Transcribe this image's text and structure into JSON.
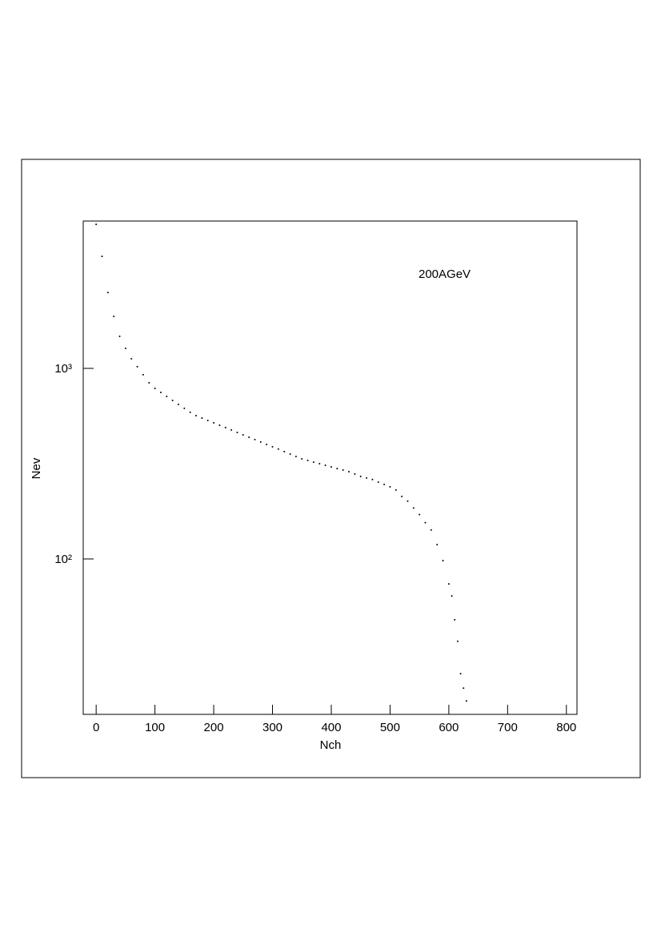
{
  "chart_data": {
    "type": "scatter",
    "annotation": "200AGeV",
    "x_label": "Nch",
    "y_label": "Nev",
    "log_y": true,
    "color": "#000000",
    "xlim": [
      -22,
      818
    ],
    "ylim": [
      15.3,
      5930
    ],
    "xticks": [
      0,
      100,
      200,
      300,
      400,
      500,
      600,
      700,
      800
    ],
    "yticks": [
      {
        "value": 100,
        "label": "10²"
      },
      {
        "value": 1000,
        "label": "10³"
      }
    ],
    "x": [
      0,
      10,
      20,
      30,
      40,
      50,
      60,
      70,
      80,
      90,
      100,
      110,
      120,
      130,
      140,
      150,
      160,
      170,
      180,
      190,
      200,
      210,
      220,
      230,
      240,
      250,
      260,
      270,
      280,
      290,
      300,
      310,
      320,
      330,
      340,
      350,
      360,
      370,
      380,
      390,
      400,
      410,
      420,
      430,
      440,
      450,
      460,
      470,
      480,
      490,
      500,
      510,
      520,
      530,
      540,
      550,
      560,
      570,
      580,
      590,
      600,
      605,
      610,
      615,
      620,
      625,
      630
    ],
    "values": [
      5700,
      3870,
      2500,
      1875,
      1473,
      1273,
      1123,
      1020,
      926,
      840,
      785,
      748,
      713,
      679,
      647,
      617,
      588,
      565,
      549,
      533,
      518,
      503,
      489,
      475,
      461,
      448,
      435,
      423,
      411,
      399,
      388,
      377,
      366,
      355,
      345,
      335,
      329,
      322,
      316,
      310,
      304,
      298,
      293,
      287,
      279,
      271,
      266,
      261,
      253,
      246,
      239,
      230,
      213,
      201,
      185,
      171,
      155,
      142,
      119,
      98,
      74,
      64,
      48,
      37,
      25,
      21,
      18
    ]
  }
}
